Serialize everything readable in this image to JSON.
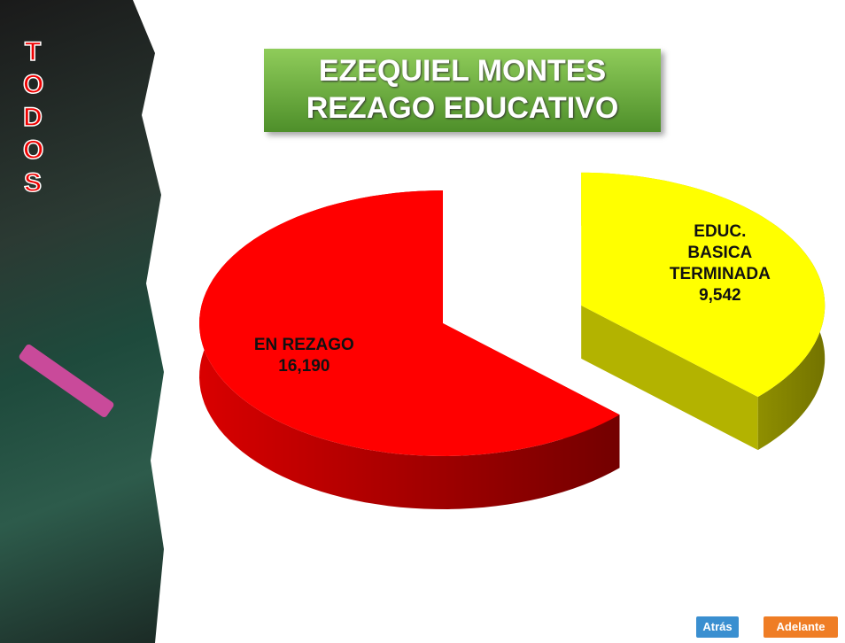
{
  "side_label": "TODOS",
  "chart_data": {
    "type": "pie",
    "title": "EZEQUIEL MONTES REZAGO EDUCATIVO",
    "categories": [
      "EN REZAGO",
      "EDUC. BASICA TERMINADA"
    ],
    "values": [
      16190,
      9542
    ],
    "value_labels": [
      "16,190",
      "9,542"
    ],
    "colors": [
      "#ff0000",
      "#ffff00"
    ],
    "exploded": [
      false,
      true
    ]
  },
  "navigation": {
    "back": "Atrás",
    "next": "Adelante"
  }
}
